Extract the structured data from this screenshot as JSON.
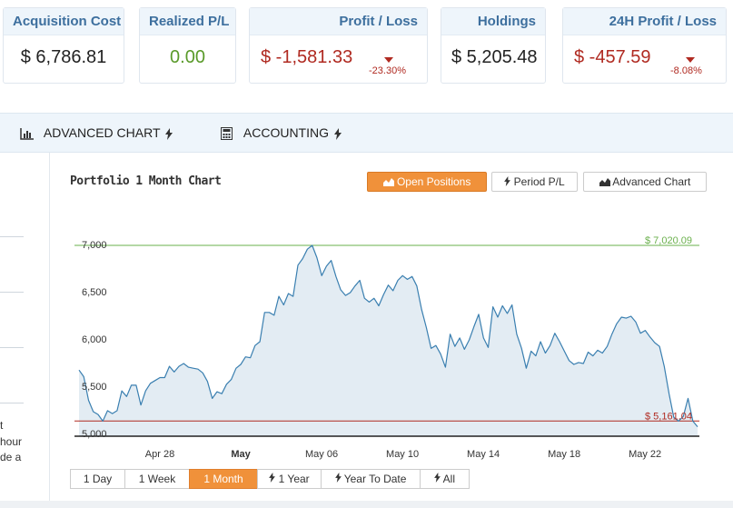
{
  "cards": {
    "acquisition_cost": {
      "label": "Acquisition Cost",
      "value": "$ 6,786.81"
    },
    "realized_pl": {
      "label": "Realized P/L",
      "value": "0.00"
    },
    "profit_loss": {
      "label": "Profit / Loss",
      "value": "$ -1,581.33",
      "change": "-23.30%"
    },
    "holdings": {
      "label": "Holdings",
      "value": "$ 5,205.48"
    },
    "profit_24h": {
      "label": "24H Profit / Loss",
      "value": "$ -457.59",
      "change": "-8.08%"
    }
  },
  "tabs": [
    {
      "label": "ADVANCED CHART",
      "icon": "bar-chart-icon"
    },
    {
      "label": "ACCOUNTING",
      "icon": "calculator-icon"
    }
  ],
  "sidebar_fragment": {
    "lines": [
      "t",
      "hour",
      "de a"
    ]
  },
  "chart_panel": {
    "title": "Portfolio 1 Month Chart",
    "mode_buttons": [
      {
        "label": "Open Positions",
        "icon": "area-chart-icon",
        "active": true
      },
      {
        "label": "Period P/L",
        "icon": "bolt-icon",
        "active": false
      },
      {
        "label": "Advanced Chart",
        "icon": "area-chart-icon",
        "active": false
      }
    ],
    "range_buttons": [
      {
        "label": "1 Day",
        "active": false
      },
      {
        "label": "1 Week",
        "active": false
      },
      {
        "label": "1 Month",
        "active": true
      },
      {
        "label": "1 Year",
        "icon": "bolt-icon",
        "active": false
      },
      {
        "label": "Year To Date",
        "icon": "bolt-icon",
        "active": false
      },
      {
        "label": "All",
        "icon": "bolt-icon",
        "active": false
      }
    ]
  },
  "colors": {
    "header_text": "#3d6f9e",
    "header_bg": "#eef5fb",
    "positive": "#5a9a2a",
    "negative": "#b02a21",
    "accent": "#f0913a",
    "line": "#3a7fb0",
    "area": "#e3ecf3"
  },
  "chart_data": {
    "type": "area",
    "title": "Portfolio 1 Month Chart",
    "xlabel": "",
    "ylabel": "",
    "ylim": [
      5000,
      7020.09
    ],
    "x_tick_labels": [
      "Apr 28",
      "May",
      "May 06",
      "May 10",
      "May 14",
      "May 18",
      "May 22"
    ],
    "x_tick_index": [
      4,
      8,
      12,
      16,
      20,
      24,
      28
    ],
    "y_ticks": [
      5000,
      5500,
      6000,
      6500,
      7000
    ],
    "y_tick_labels": [
      "5,000",
      "5,500",
      "6,000",
      "6,500",
      "7,000"
    ],
    "max_line": {
      "value": 7020.09,
      "label": "$ 7,020.09",
      "color": "#6ab04c"
    },
    "min_line": {
      "value": 5161.04,
      "label": "$ 5,161.04",
      "color": "#b02a21"
    },
    "grid": false,
    "legend": "none",
    "series": [
      {
        "x_start_index": 0,
        "x_end_index": 30.6,
        "values": [
          5700,
          5630,
          5380,
          5260,
          5230,
          5160,
          5270,
          5240,
          5270,
          5480,
          5420,
          5540,
          5540,
          5330,
          5480,
          5560,
          5590,
          5620,
          5620,
          5740,
          5680,
          5740,
          5770,
          5730,
          5720,
          5710,
          5670,
          5580,
          5400,
          5470,
          5450,
          5550,
          5600,
          5720,
          5760,
          5840,
          5830,
          5960,
          6000,
          6310,
          6310,
          6280,
          6480,
          6390,
          6510,
          6480,
          6810,
          6880,
          6980,
          7020,
          6890,
          6700,
          6800,
          6860,
          6690,
          6550,
          6490,
          6520,
          6590,
          6650,
          6460,
          6420,
          6460,
          6380,
          6500,
          6600,
          6540,
          6650,
          6700,
          6660,
          6690,
          6590,
          6340,
          6150,
          5930,
          5960,
          5870,
          5730,
          6080,
          5950,
          6040,
          5920,
          6020,
          6160,
          6290,
          6040,
          5940,
          6370,
          6260,
          6380,
          6300,
          6390,
          6080,
          5930,
          5720,
          5900,
          5850,
          6000,
          5880,
          5960,
          6090,
          6000,
          5900,
          5800,
          5760,
          5780,
          5770,
          5890,
          5850,
          5910,
          5880,
          5950,
          6080,
          6190,
          6260,
          6250,
          6270,
          6210,
          6090,
          6120,
          6050,
          5990,
          5950,
          5740,
          5450,
          5200,
          5160,
          5210,
          5400,
          5160,
          5100
        ]
      }
    ]
  }
}
